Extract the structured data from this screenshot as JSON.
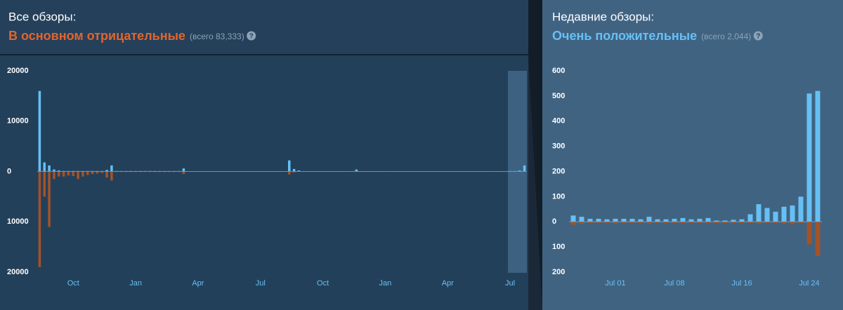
{
  "header": {
    "left": {
      "label": "Все обзоры:",
      "rating": "В основном отрицательные",
      "count": "(всего 83,333)",
      "help": "?"
    },
    "right": {
      "label": "Недавние обзоры:",
      "rating": "Очень положительные",
      "count": "(всего 2,044)",
      "help": "?"
    }
  },
  "chart_data": [
    {
      "type": "bar",
      "categories": [
        null,
        null,
        null,
        null,
        null,
        null,
        null,
        "Oct",
        null,
        null,
        null,
        null,
        null,
        null,
        null,
        null,
        null,
        null,
        null,
        null,
        "Jan",
        null,
        null,
        null,
        null,
        null,
        null,
        null,
        null,
        null,
        null,
        null,
        null,
        "Apr",
        null,
        null,
        null,
        null,
        null,
        null,
        null,
        null,
        null,
        null,
        null,
        null,
        "Jul",
        null,
        null,
        null,
        null,
        null,
        null,
        null,
        null,
        null,
        null,
        null,
        null,
        "Oct",
        null,
        null,
        null,
        null,
        null,
        null,
        null,
        null,
        null,
        null,
        null,
        null,
        "Jan",
        null,
        null,
        null,
        null,
        null,
        null,
        null,
        null,
        null,
        null,
        null,
        null,
        "Apr",
        null,
        null,
        null,
        null,
        null,
        null,
        null,
        null,
        null,
        null,
        null,
        null,
        "Jul",
        null,
        null,
        null
      ],
      "series": [
        {
          "color": "#66c0f4",
          "values": [
            16000,
            1800,
            1200,
            400,
            200,
            100,
            100,
            100,
            100,
            100,
            100,
            100,
            100,
            100,
            300,
            1200,
            100,
            100,
            100,
            100,
            100,
            100,
            100,
            100,
            100,
            100,
            100,
            100,
            100,
            100,
            600,
            50,
            50,
            50,
            50,
            50,
            50,
            50,
            50,
            50,
            50,
            50,
            50,
            50,
            50,
            50,
            50,
            50,
            50,
            50,
            50,
            50,
            2200,
            500,
            200,
            50,
            50,
            50,
            50,
            50,
            50,
            50,
            50,
            50,
            50,
            50,
            400,
            50,
            50,
            50,
            50,
            50,
            50,
            50,
            50,
            50,
            50,
            50,
            50,
            50,
            50,
            50,
            50,
            50,
            50,
            50,
            50,
            50,
            50,
            50,
            50,
            50,
            50,
            50,
            50,
            50,
            50,
            50,
            100,
            100,
            200,
            1200
          ]
        },
        {
          "color": "#a3522a",
          "values": [
            -19000,
            -5000,
            -11000,
            -1500,
            -1000,
            -1000,
            -800,
            -900,
            -1500,
            -1000,
            -700,
            -500,
            -400,
            -300,
            -1200,
            -1800,
            -100,
            -100,
            -100,
            -100,
            -100,
            -100,
            -100,
            -100,
            -100,
            -100,
            -100,
            -100,
            -100,
            -100,
            -500,
            -50,
            -50,
            -50,
            -50,
            -50,
            -50,
            -50,
            -50,
            -50,
            -50,
            -50,
            -50,
            -50,
            -50,
            -50,
            -50,
            -50,
            -50,
            -50,
            -50,
            -50,
            -600,
            -200,
            -50,
            -50,
            -50,
            -50,
            -50,
            -50,
            -50,
            -50,
            -50,
            -50,
            -50,
            -50,
            -50,
            -50,
            -50,
            -50,
            -50,
            -50,
            -50,
            -50,
            -50,
            -50,
            -50,
            -50,
            -50,
            -50,
            -50,
            -50,
            -50,
            -50,
            -50,
            -50,
            -50,
            -50,
            -50,
            -50,
            -50,
            -50,
            -50,
            -50,
            -50,
            -50,
            -50,
            -50,
            -50,
            -50,
            -50,
            -50
          ]
        }
      ],
      "ylim": [
        -20000,
        20000
      ],
      "yticks": [
        20000,
        10000,
        0,
        {
          "value": -10000,
          "label": "10000"
        },
        {
          "value": -20000,
          "label": "20000"
        }
      ]
    },
    {
      "type": "bar",
      "categories": [
        null,
        null,
        null,
        null,
        null,
        "Jul 01",
        null,
        null,
        null,
        null,
        null,
        null,
        "Jul 08",
        null,
        null,
        null,
        null,
        null,
        null,
        null,
        "Jul 16",
        null,
        null,
        null,
        null,
        null,
        null,
        null,
        "Jul 24",
        null
      ],
      "series": [
        {
          "color": "#66c0f4",
          "values": [
            25,
            20,
            12,
            12,
            10,
            12,
            12,
            12,
            10,
            20,
            10,
            10,
            12,
            15,
            10,
            12,
            15,
            5,
            5,
            8,
            10,
            30,
            70,
            55,
            40,
            60,
            65,
            100,
            510,
            520
          ]
        },
        {
          "color": "#a3522a",
          "values": [
            -12,
            -8,
            -5,
            -5,
            -5,
            -8,
            -5,
            -5,
            -5,
            -8,
            -5,
            -5,
            -5,
            -5,
            -5,
            -5,
            -5,
            -5,
            -5,
            -5,
            -5,
            -5,
            -8,
            -5,
            -5,
            -8,
            -10,
            -5,
            -90,
            -135
          ]
        }
      ],
      "ylim": [
        -200,
        600
      ],
      "yticks": [
        600,
        500,
        400,
        300,
        200,
        100,
        0,
        {
          "value": -100,
          "label": "100"
        },
        {
          "value": -200,
          "label": "200"
        }
      ]
    }
  ]
}
